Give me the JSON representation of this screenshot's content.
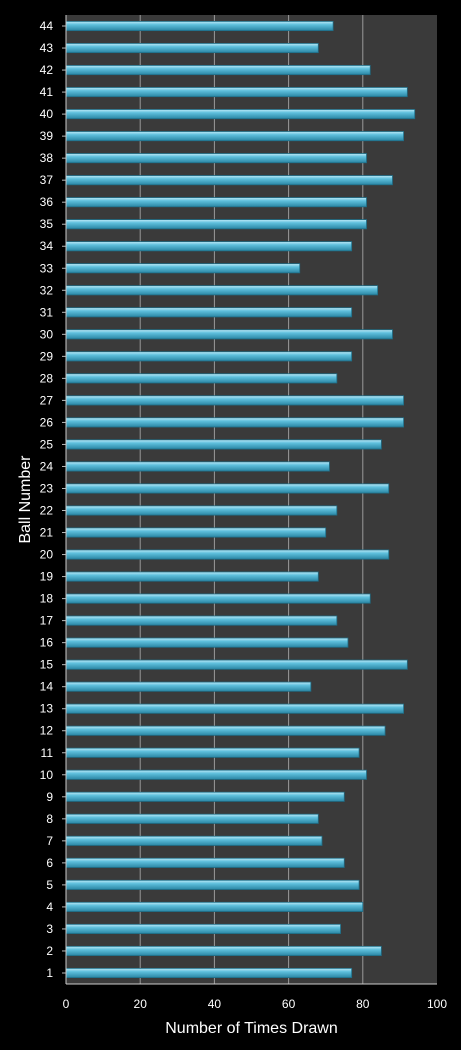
{
  "chart_data": {
    "type": "bar",
    "orientation": "horizontal",
    "xlabel": "Number of Times Drawn",
    "ylabel": "Ball Number",
    "xlim": [
      0,
      100
    ],
    "xticks": [
      0,
      20,
      40,
      60,
      80,
      100
    ],
    "grid": true,
    "categories": [
      "1",
      "2",
      "3",
      "4",
      "5",
      "6",
      "7",
      "8",
      "9",
      "10",
      "11",
      "12",
      "13",
      "14",
      "15",
      "16",
      "17",
      "18",
      "19",
      "20",
      "21",
      "22",
      "23",
      "24",
      "25",
      "26",
      "27",
      "28",
      "29",
      "30",
      "31",
      "32",
      "33",
      "34",
      "35",
      "36",
      "37",
      "38",
      "39",
      "40",
      "41",
      "42",
      "43",
      "44"
    ],
    "values": [
      77,
      85,
      74,
      80,
      79,
      75,
      69,
      68,
      75,
      81,
      79,
      86,
      91,
      66,
      92,
      76,
      73,
      82,
      68,
      87,
      70,
      73,
      87,
      71,
      85,
      91,
      91,
      73,
      77,
      88,
      77,
      84,
      63,
      77,
      81,
      81,
      88,
      81,
      91,
      94,
      92,
      82,
      68,
      72
    ],
    "colors": {
      "background": "#000000",
      "plot_area": "#3a3a3a",
      "bar_fill": "#4ab0cf",
      "bar_edge": "#1f6d86",
      "gridline": "#9a9a9a",
      "text": "#ffffff"
    }
  }
}
